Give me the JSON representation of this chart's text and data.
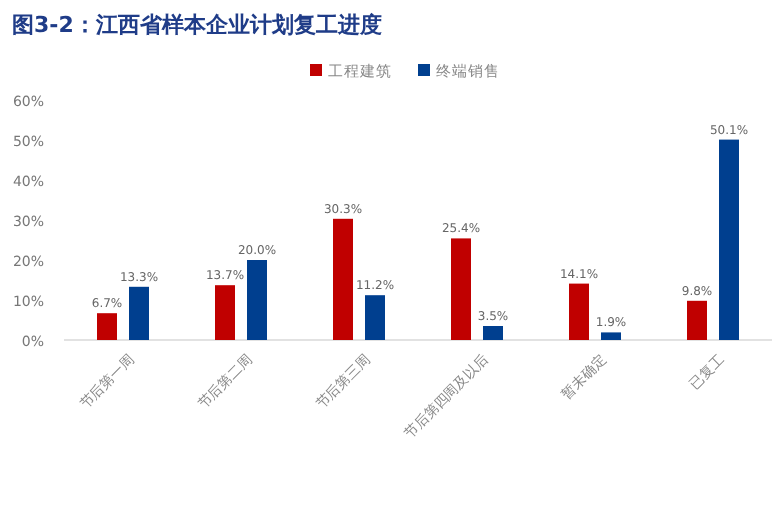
{
  "chart_data": {
    "type": "bar",
    "title": "图3-2：江西省样本企业计划复工进度",
    "categories": [
      "节后第一周",
      "节后第二周",
      "节后第三周",
      "节后第四周及以后",
      "暂未确定",
      "已复工"
    ],
    "series": [
      {
        "name": "工程建筑",
        "color": "#c00000",
        "values": [
          6.7,
          13.7,
          30.3,
          25.4,
          14.1,
          9.8
        ],
        "value_labels": [
          "6.7%",
          "13.7%",
          "30.3%",
          "25.4%",
          "14.1%",
          "9.8%"
        ]
      },
      {
        "name": "终端销售",
        "color": "#003f8f",
        "values": [
          13.3,
          20.0,
          11.2,
          3.5,
          1.9,
          50.1
        ],
        "value_labels": [
          "13.3%",
          "20.0%",
          "11.2%",
          "3.5%",
          "1.9%",
          "50.1%"
        ]
      }
    ],
    "ylim": [
      0,
      60
    ],
    "yticks": [
      {
        "value": 0,
        "label": "0%"
      },
      {
        "value": 10,
        "label": "10%"
      },
      {
        "value": 20,
        "label": "20%"
      },
      {
        "value": 30,
        "label": "30%"
      },
      {
        "value": 40,
        "label": "40%"
      },
      {
        "value": 50,
        "label": "50%"
      },
      {
        "value": 60,
        "label": "60%"
      }
    ],
    "legend": "top",
    "grid": false
  }
}
